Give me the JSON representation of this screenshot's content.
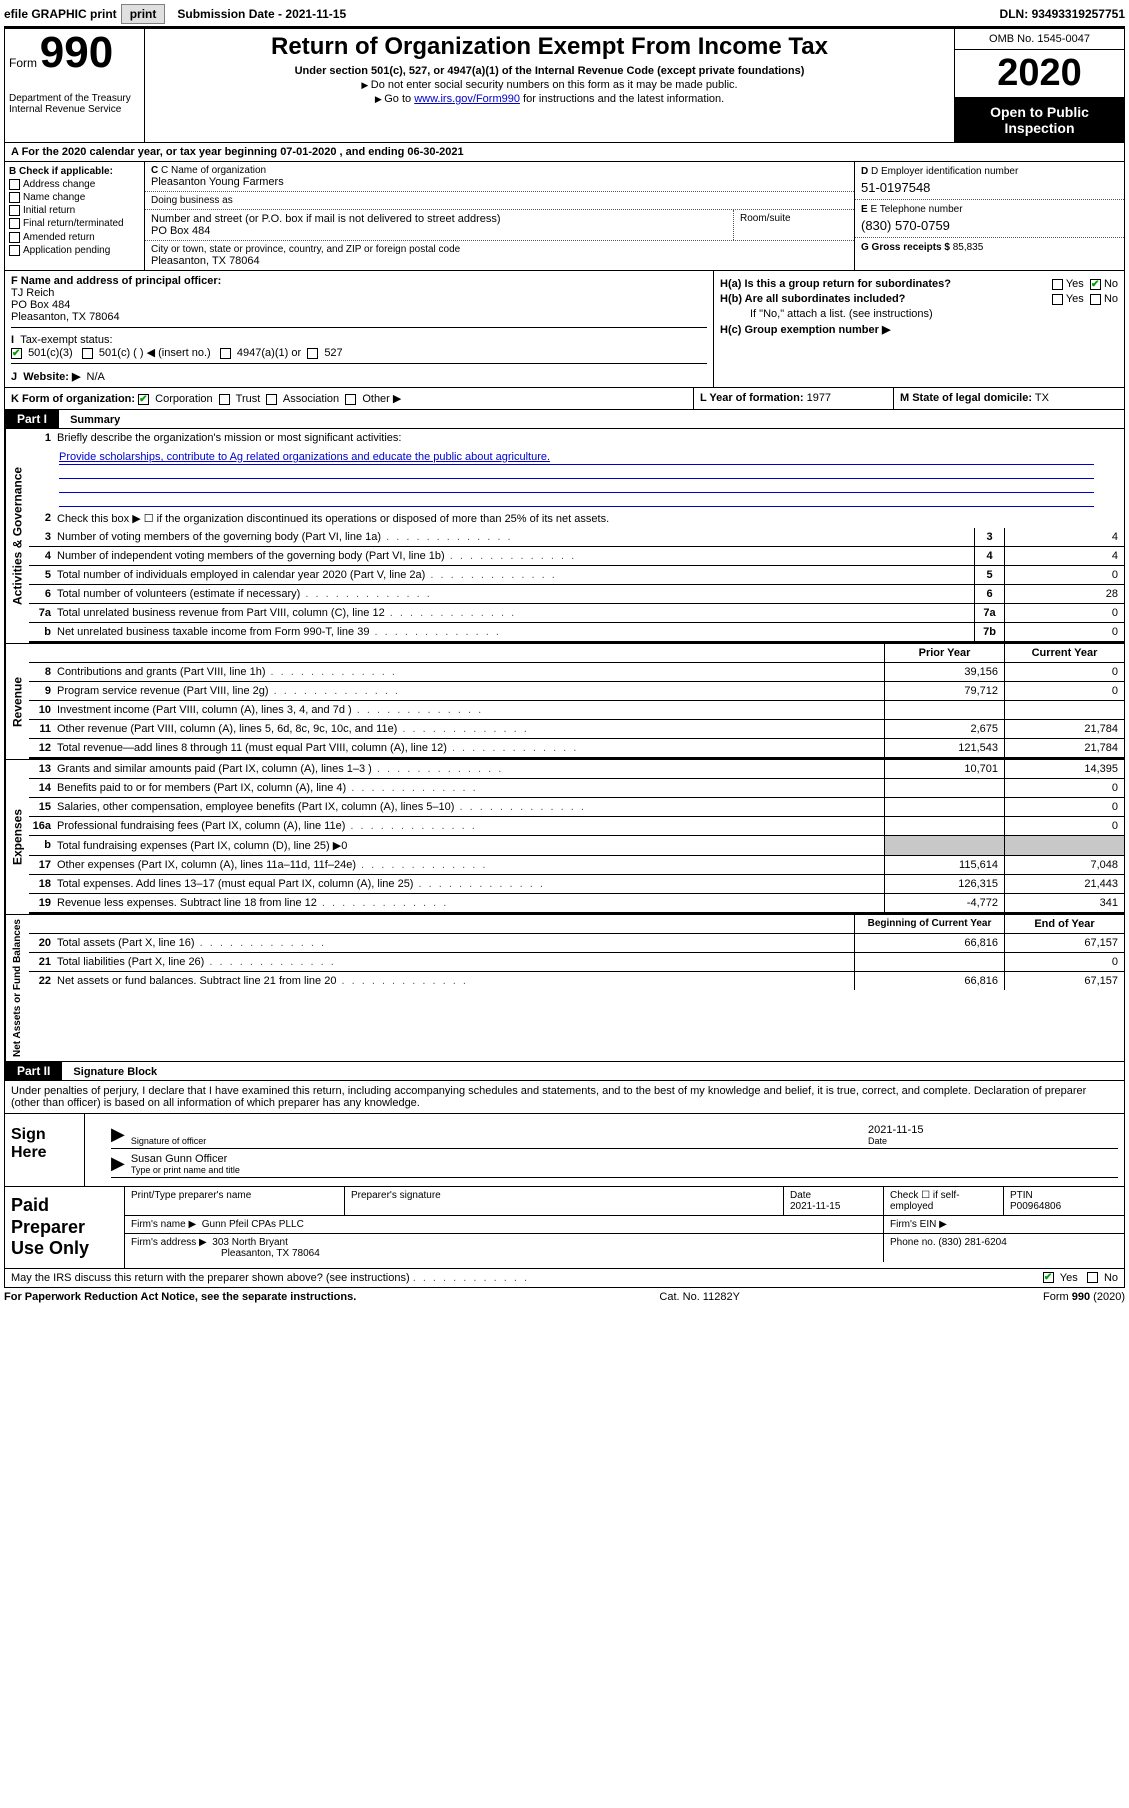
{
  "topbar": {
    "efile_label": "efile GRAPHIC print",
    "submission_label": "Submission Date",
    "submission_value": "2021-11-15",
    "dln_label": "DLN:",
    "dln_value": "93493319257751"
  },
  "header": {
    "form_word": "Form",
    "form_number": "990",
    "dept": "Department of the Treasury\nInternal Revenue Service",
    "title": "Return of Organization Exempt From Income Tax",
    "subtitle": "Under section 501(c), 527, or 4947(a)(1) of the Internal Revenue Code (except private foundations)",
    "note1": "Do not enter social security numbers on this form as it may be made public.",
    "note2_pre": "Go to ",
    "note2_link": "www.irs.gov/Form990",
    "note2_post": " for instructions and the latest information.",
    "omb": "OMB No. 1545-0047",
    "year": "2020",
    "inspect": "Open to Public Inspection"
  },
  "row_a": {
    "text": "A For the 2020 calendar year, or tax year beginning 07-01-2020   , and ending 06-30-2021"
  },
  "col_b": {
    "heading": "B Check if applicable:",
    "items": [
      "Address change",
      "Name change",
      "Initial return",
      "Final return/terminated",
      "Amended return",
      "Application pending"
    ]
  },
  "col_c": {
    "name_label": "C Name of organization",
    "name_value": "Pleasanton Young Farmers",
    "dba_label": "Doing business as",
    "dba_value": "",
    "addr_label": "Number and street (or P.O. box if mail is not delivered to street address)",
    "addr_value": "PO Box 484",
    "suite_label": "Room/suite",
    "city_label": "City or town, state or province, country, and ZIP or foreign postal code",
    "city_value": "Pleasanton, TX  78064"
  },
  "col_de": {
    "d_label": "D Employer identification number",
    "d_value": "51-0197548",
    "e_label": "E Telephone number",
    "e_value": "(830) 570-0759",
    "g_label": "G Gross receipts $",
    "g_value": "85,835"
  },
  "col_f": {
    "label": "F  Name and address of principal officer:",
    "name": "TJ Reich",
    "addr1": "PO Box 484",
    "addr2": "Pleasanton, TX  78064",
    "tax_label": "Tax-exempt status:",
    "opts": [
      "501(c)(3)",
      "501(c) (  ) ◀ (insert no.)",
      "4947(a)(1) or",
      "527"
    ],
    "website_label": "Website: ▶",
    "website_value": "N/A"
  },
  "col_h": {
    "ha": "H(a)  Is this a group return for subordinates?",
    "hb": "H(b)  Are all subordinates included?",
    "hb_note": "If \"No,\" attach a list. (see instructions)",
    "hc": "H(c)  Group exemption number ▶",
    "yes": "Yes",
    "no": "No"
  },
  "row_i": {
    "label": "I",
    "rest": "see above"
  },
  "row_j": {
    "label": "J",
    "rest": "see above"
  },
  "row_k": {
    "label": "K Form of organization:",
    "opts": [
      "Corporation",
      "Trust",
      "Association",
      "Other ▶"
    ]
  },
  "row_l": {
    "label": "L Year of formation:",
    "value": "1977"
  },
  "row_m": {
    "label": "M State of legal domicile:",
    "value": "TX"
  },
  "parts": {
    "p1": "Part I",
    "p1_title": "Summary",
    "p2": "Part II",
    "p2_title": "Signature Block"
  },
  "summary": {
    "vtabs": [
      "Activities & Governance",
      "Revenue",
      "Expenses",
      "Net Assets or Fund Balances"
    ],
    "q1": "Briefly describe the organization's mission or most significant activities:",
    "mission": "Provide scholarships, contribute to Ag related organizations and educate the public about agriculture.",
    "q2": "Check this box ▶ ☐  if the organization discontinued its operations or disposed of more than 25% of its net assets.",
    "lines": [
      {
        "n": "3",
        "t": "Number of voting members of the governing body (Part VI, line 1a)",
        "c": "3",
        "v": "4"
      },
      {
        "n": "4",
        "t": "Number of independent voting members of the governing body (Part VI, line 1b)",
        "c": "4",
        "v": "4"
      },
      {
        "n": "5",
        "t": "Total number of individuals employed in calendar year 2020 (Part V, line 2a)",
        "c": "5",
        "v": "0"
      },
      {
        "n": "6",
        "t": "Total number of volunteers (estimate if necessary)",
        "c": "6",
        "v": "28"
      },
      {
        "n": "7a",
        "t": "Total unrelated business revenue from Part VIII, column (C), line 12",
        "c": "7a",
        "v": "0"
      },
      {
        "n": "b",
        "t": "Net unrelated business taxable income from Form 990-T, line 39",
        "c": "7b",
        "v": "0"
      }
    ],
    "year_hdr": {
      "prior": "Prior Year",
      "current": "Current Year"
    },
    "rev": [
      {
        "n": "8",
        "t": "Contributions and grants (Part VIII, line 1h)",
        "p": "39,156",
        "c": "0"
      },
      {
        "n": "9",
        "t": "Program service revenue (Part VIII, line 2g)",
        "p": "79,712",
        "c": "0"
      },
      {
        "n": "10",
        "t": "Investment income (Part VIII, column (A), lines 3, 4, and 7d )",
        "p": "",
        "c": ""
      },
      {
        "n": "11",
        "t": "Other revenue (Part VIII, column (A), lines 5, 6d, 8c, 9c, 10c, and 11e)",
        "p": "2,675",
        "c": "21,784"
      },
      {
        "n": "12",
        "t": "Total revenue—add lines 8 through 11 (must equal Part VIII, column (A), line 12)",
        "p": "121,543",
        "c": "21,784"
      }
    ],
    "exp": [
      {
        "n": "13",
        "t": "Grants and similar amounts paid (Part IX, column (A), lines 1–3 )",
        "p": "10,701",
        "c": "14,395"
      },
      {
        "n": "14",
        "t": "Benefits paid to or for members (Part IX, column (A), line 4)",
        "p": "",
        "c": "0"
      },
      {
        "n": "15",
        "t": "Salaries, other compensation, employee benefits (Part IX, column (A), lines 5–10)",
        "p": "",
        "c": "0"
      },
      {
        "n": "16a",
        "t": "Professional fundraising fees (Part IX, column (A), line 11e)",
        "p": "",
        "c": "0"
      },
      {
        "n": "b",
        "t": "Total fundraising expenses (Part IX, column (D), line 25) ▶0",
        "p": "SHADE",
        "c": "SHADE"
      },
      {
        "n": "17",
        "t": "Other expenses (Part IX, column (A), lines 11a–11d, 11f–24e)",
        "p": "115,614",
        "c": "7,048"
      },
      {
        "n": "18",
        "t": "Total expenses. Add lines 13–17 (must equal Part IX, column (A), line 25)",
        "p": "126,315",
        "c": "21,443"
      },
      {
        "n": "19",
        "t": "Revenue less expenses. Subtract line 18 from line 12",
        "p": "-4,772",
        "c": "341"
      }
    ],
    "net_hdr": {
      "begin": "Beginning of Current Year",
      "end": "End of Year"
    },
    "net": [
      {
        "n": "20",
        "t": "Total assets (Part X, line 16)",
        "p": "66,816",
        "c": "67,157"
      },
      {
        "n": "21",
        "t": "Total liabilities (Part X, line 26)",
        "p": "",
        "c": "0"
      },
      {
        "n": "22",
        "t": "Net assets or fund balances. Subtract line 21 from line 20",
        "p": "66,816",
        "c": "67,157"
      }
    ]
  },
  "sig": {
    "perjury": "Under penalties of perjury, I declare that I have examined this return, including accompanying schedules and statements, and to the best of my knowledge and belief, it is true, correct, and complete. Declaration of preparer (other than officer) is based on all information of which preparer has any knowledge.",
    "sign_here": "Sign Here",
    "sig_of_officer": "Signature of officer",
    "date_label": "Date",
    "date_value": "2021-11-15",
    "name_title": "Susan Gunn  Officer",
    "type_label": "Type or print name and title"
  },
  "prep": {
    "label": "Paid Preparer Use Only",
    "r1": {
      "c1": "Print/Type preparer's name",
      "c2": "Preparer's signature",
      "c3": "Date",
      "c3v": "2021-11-15",
      "c4": "Check ☐  if self-employed",
      "c5": "PTIN",
      "c5v": "P00964806"
    },
    "r2": {
      "c1": "Firm's name  ▶",
      "c1v": "Gunn Pfeil CPAs PLLC",
      "c2": "Firm's EIN ▶"
    },
    "r3": {
      "c1": "Firm's address ▶",
      "c1v": "303 North Bryant",
      "c1v2": "Pleasanton, TX  78064",
      "c2": "Phone no.",
      "c2v": "(830) 281-6204"
    }
  },
  "discuss": {
    "text": "May the IRS discuss this return with the preparer shown above? (see instructions)",
    "yes": "Yes",
    "no": "No"
  },
  "footer": {
    "left": "For Paperwork Reduction Act Notice, see the separate instructions.",
    "mid": "Cat. No. 11282Y",
    "right": "Form 990 (2020)"
  }
}
